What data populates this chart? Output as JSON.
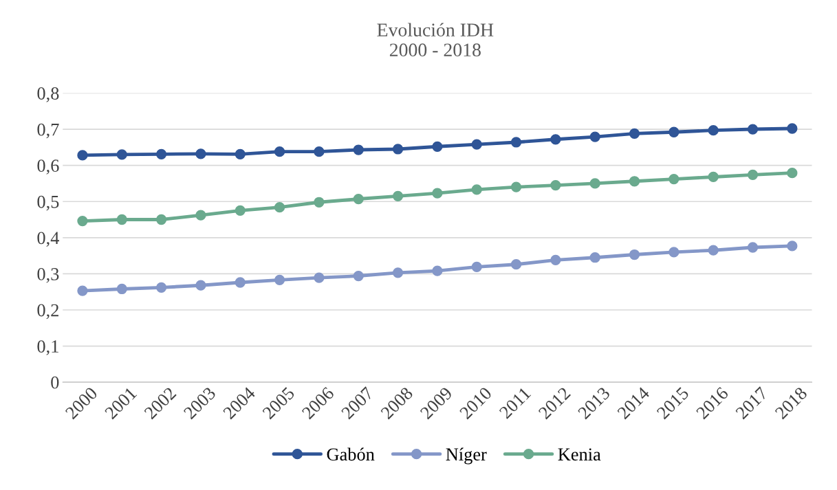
{
  "chart_data": {
    "type": "line",
    "title": "Evolución IDH\n2000 - 2018",
    "categories": [
      "2000",
      "2001",
      "2002",
      "2003",
      "2004",
      "2005",
      "2006",
      "2007",
      "2008",
      "2009",
      "2010",
      "2011",
      "2012",
      "2013",
      "2014",
      "2015",
      "2016",
      "2017",
      "2018"
    ],
    "series": [
      {
        "name": "Gabón",
        "color": "#2f5597",
        "values": [
          0.628,
          0.63,
          0.631,
          0.632,
          0.631,
          0.638,
          0.638,
          0.643,
          0.645,
          0.652,
          0.658,
          0.664,
          0.672,
          0.679,
          0.688,
          0.692,
          0.697,
          0.7,
          0.702
        ]
      },
      {
        "name": "Níger",
        "color": "#8497c8",
        "values": [
          0.253,
          0.258,
          0.262,
          0.268,
          0.276,
          0.283,
          0.289,
          0.294,
          0.303,
          0.308,
          0.319,
          0.326,
          0.338,
          0.345,
          0.353,
          0.36,
          0.365,
          0.373,
          0.377
        ]
      },
      {
        "name": "Kenia",
        "color": "#6aaa8e",
        "values": [
          0.446,
          0.45,
          0.45,
          0.462,
          0.475,
          0.484,
          0.498,
          0.507,
          0.515,
          0.523,
          0.533,
          0.54,
          0.545,
          0.55,
          0.556,
          0.562,
          0.568,
          0.574,
          0.579
        ]
      }
    ],
    "ylim": [
      0,
      0.8
    ],
    "yticks": [
      {
        "value": 0,
        "label": "0"
      },
      {
        "value": 0.1,
        "label": "0,1"
      },
      {
        "value": 0.2,
        "label": "0,2"
      },
      {
        "value": 0.3,
        "label": "0,3"
      },
      {
        "value": 0.4,
        "label": "0,4"
      },
      {
        "value": 0.5,
        "label": "0,5"
      },
      {
        "value": 0.6,
        "label": "0,6"
      },
      {
        "value": 0.7,
        "label": "0,7"
      },
      {
        "value": 0.8,
        "label": "0,8"
      }
    ],
    "grid": "y",
    "legend": "bottom",
    "marker": "circle",
    "line_style": "solid"
  }
}
